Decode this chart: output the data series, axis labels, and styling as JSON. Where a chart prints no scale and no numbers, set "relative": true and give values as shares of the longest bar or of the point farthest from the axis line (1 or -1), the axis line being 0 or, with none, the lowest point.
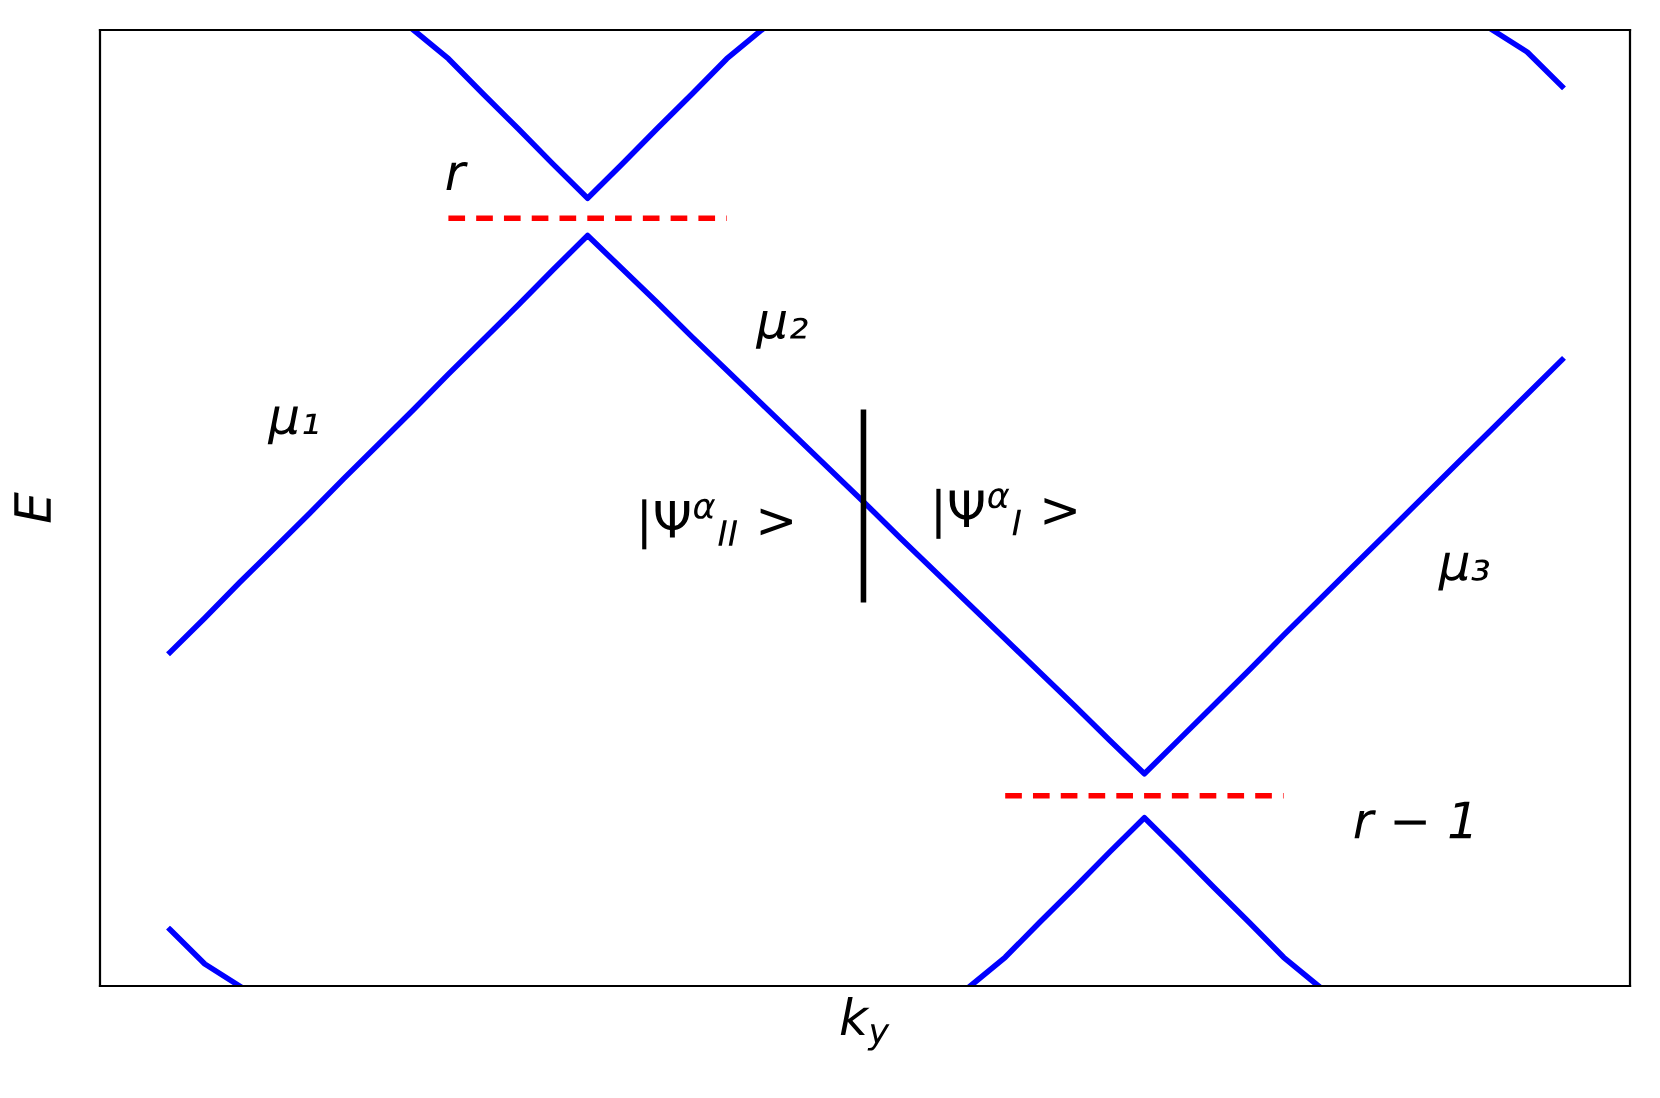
{
  "chart_data": {
    "type": "line",
    "relative": true,
    "xlabel": "k$_{y}$",
    "ylabel": "E",
    "tick_labels": false,
    "grid": false,
    "legend": false,
    "categories": [
      null,
      null,
      null,
      null,
      null,
      null,
      null,
      null,
      null,
      null,
      null,
      null,
      null,
      null,
      null,
      null,
      null,
      null,
      null,
      null,
      null,
      null,
      null,
      null,
      null,
      null,
      null,
      null,
      null,
      null,
      null,
      null,
      null,
      null,
      null,
      null,
      null,
      null,
      null,
      null,
      null
    ],
    "series": [
      {
        "color": "#0000ff",
        "line_style": "solid",
        "values": [
          null,
          null,
          null,
          null,
          null,
          null,
          null,
          1.0,
          0.97,
          0.933,
          0.897,
          0.86,
          0.824,
          0.86,
          0.897,
          0.933,
          0.97,
          1.0,
          null,
          null,
          null,
          null,
          null,
          null,
          null,
          null,
          null,
          null,
          null,
          null,
          null,
          null,
          null,
          null,
          null,
          null,
          null,
          null,
          null,
          null,
          null
        ]
      },
      {
        "color": "#0000ff",
        "line_style": "solid",
        "values": [
          0.349,
          0.385,
          0.422,
          0.458,
          0.494,
          0.531,
          0.567,
          0.603,
          0.64,
          0.676,
          0.712,
          0.749,
          0.785,
          0.75,
          0.715,
          0.679,
          0.644,
          0.609,
          0.574,
          0.539,
          0.504,
          0.468,
          0.433,
          0.398,
          0.363,
          0.328,
          0.293,
          0.257,
          0.222,
          0.258,
          0.294,
          0.33,
          0.367,
          0.403,
          0.439,
          0.475,
          0.511,
          0.547,
          0.583,
          0.619,
          0.655
        ]
      },
      {
        "color": "#0000ff",
        "line_style": "solid",
        "values": [
          null,
          null,
          null,
          null,
          null,
          null,
          null,
          null,
          null,
          null,
          null,
          null,
          null,
          null,
          null,
          null,
          null,
          null,
          null,
          null,
          null,
          null,
          null,
          0.0,
          0.03,
          0.067,
          0.103,
          0.14,
          0.176,
          0.14,
          0.103,
          0.067,
          0.03,
          0.0,
          null,
          null,
          null,
          null,
          null,
          null,
          null
        ]
      },
      {
        "color": "#0000ff",
        "line_style": "solid",
        "values": [
          0.059,
          0.023,
          0.0,
          null,
          null,
          null,
          null,
          null,
          null,
          null,
          null,
          null,
          null,
          null,
          null,
          null,
          null,
          null,
          null,
          null,
          null,
          null,
          null,
          null,
          null,
          null,
          null,
          null,
          null,
          null,
          null,
          null,
          null,
          null,
          null,
          null,
          null,
          null,
          null,
          null,
          null
        ]
      },
      {
        "color": "#0000ff",
        "line_style": "solid",
        "values": [
          null,
          null,
          null,
          null,
          null,
          null,
          null,
          null,
          null,
          null,
          null,
          null,
          null,
          null,
          null,
          null,
          null,
          null,
          null,
          null,
          null,
          null,
          null,
          null,
          null,
          null,
          null,
          null,
          null,
          null,
          null,
          null,
          null,
          null,
          null,
          null,
          null,
          null,
          1.0,
          0.977,
          0.941
        ]
      },
      {
        "color": "#ff0000",
        "line_style": "dashed",
        "values": [
          null,
          null,
          null,
          null,
          null,
          null,
          null,
          null,
          0.803,
          0.803,
          0.803,
          0.803,
          0.803,
          0.803,
          0.803,
          0.803,
          0.803,
          null,
          null,
          null,
          null,
          null,
          null,
          null,
          null,
          null,
          null,
          null,
          null,
          null,
          null,
          null,
          null,
          null,
          null,
          null,
          null,
          null,
          null,
          null,
          null
        ]
      },
      {
        "color": "#ff0000",
        "line_style": "dashed",
        "values": [
          null,
          null,
          null,
          null,
          null,
          null,
          null,
          null,
          null,
          null,
          null,
          null,
          null,
          null,
          null,
          null,
          null,
          null,
          null,
          null,
          null,
          null,
          null,
          null,
          0.199,
          0.199,
          0.199,
          0.199,
          0.199,
          0.199,
          0.199,
          0.199,
          0.199,
          null,
          null,
          null,
          null,
          null,
          null,
          null,
          null
        ]
      }
    ],
    "annotations": [
      "r",
      "r − 1",
      "μ₁",
      "μ₂",
      "μ₃",
      "|Ψ$^{α}$$_{II}$ >",
      "|Ψ$^{α}$$_{I}$ >"
    ]
  }
}
